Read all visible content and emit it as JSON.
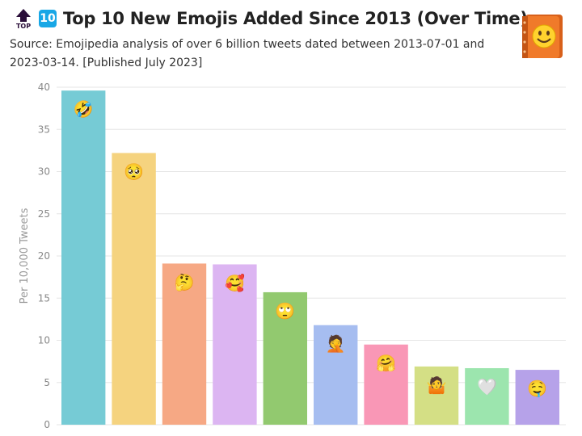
{
  "header": {
    "top_icon": "top-arrow-icon",
    "top_label": "TOP",
    "rank_badge": "10",
    "title": "Top 10 New Emojis Added Since 2013 (Over Time)",
    "subtitle": "Source: Emojipedia analysis of over 6 billion tweets dated between 2013-07-01 and 2023-03-14. [Published July 2023]",
    "logo_icon": "emojipedia-book-icon"
  },
  "chart_data": {
    "type": "bar",
    "title": "Top 10 New Emojis Added Since 2013 (Over Time)",
    "ylabel": "Per 10,000 Tweets",
    "xlabel": "",
    "ylim": [
      0,
      40
    ],
    "yticks": [
      0,
      5,
      10,
      15,
      20,
      25,
      30,
      35,
      40
    ],
    "grid": true,
    "categories": [
      "🤣",
      "🥺",
      "🤔",
      "🥰",
      "🙄",
      "🤦",
      "🤗",
      "🤷",
      "🤍",
      "🤤"
    ],
    "category_names": [
      "rolling-on-the-floor-laughing-emoji",
      "pleading-face-emoji",
      "thinking-face-emoji",
      "smiling-face-with-hearts-emoji",
      "face-with-rolling-eyes-emoji",
      "person-facepalming-emoji",
      "hugging-face-emoji",
      "person-shrugging-emoji",
      "white-heart-emoji",
      "drooling-face-emoji"
    ],
    "values": [
      39.6,
      32.2,
      19.1,
      19.0,
      15.7,
      11.8,
      9.5,
      6.9,
      6.7,
      6.5
    ],
    "colors": [
      "#76cbd5",
      "#f5d37f",
      "#f6a884",
      "#dcb5f2",
      "#92c96f",
      "#a6bdf0",
      "#f997b6",
      "#d4df85",
      "#9ce5ae",
      "#b6a2e9"
    ]
  }
}
